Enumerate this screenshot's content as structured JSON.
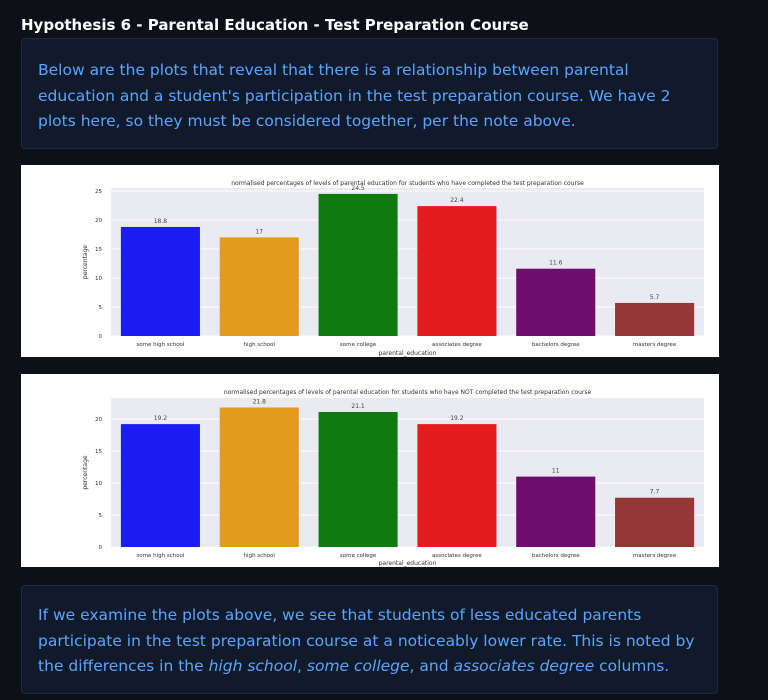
{
  "heading": "Hypothesis 6 - Parental Education - Test Preparation Course",
  "intro": "Below are the plots that reveal that there is a relationship between parental education and a student's participation in the test preparation course. We have 2 plots here, so they must be considered together, per the note above.",
  "conclusion": {
    "prefix": "If we examine the plots above, we see that students of less educated parents participate in the test preparation course at a noticeably lower rate. This is noted by the differences in the ",
    "em1": "high school",
    "sep1": ", ",
    "em2": "some college",
    "sep2": ", and ",
    "em3": "associates degree",
    "suffix": " columns."
  },
  "colors": [
    "#1c1cf0",
    "#e39b1c",
    "#0f7a0f",
    "#e51c1c",
    "#6e0e6e",
    "#963636"
  ],
  "chart_data": [
    {
      "type": "bar",
      "title": "normalised percentages of levels of parental education for students who have completed the test preparation course",
      "xlabel": "parental_education",
      "ylabel": "percentage",
      "categories": [
        "some high school",
        "high school",
        "some college",
        "associates degree",
        "bachelors degree",
        "masters degree"
      ],
      "values": [
        18.8,
        17,
        24.5,
        22.4,
        11.6,
        5.7
      ],
      "yticks": [
        0,
        5,
        10,
        15,
        20,
        25
      ],
      "ylim": [
        0,
        25
      ],
      "grid": true
    },
    {
      "type": "bar",
      "title": "normalised percentages of levels of parental education for students who have NOT completed the test preparation course",
      "xlabel": "parental_education",
      "ylabel": "percentage",
      "categories": [
        "some high school",
        "high school",
        "some college",
        "associates degree",
        "bachelors degree",
        "masters degree"
      ],
      "values": [
        19.2,
        21.8,
        21.1,
        19.2,
        11,
        7.7
      ],
      "yticks": [
        0,
        5,
        10,
        15,
        20
      ],
      "ylim": [
        0,
        21.8
      ],
      "grid": true
    }
  ]
}
